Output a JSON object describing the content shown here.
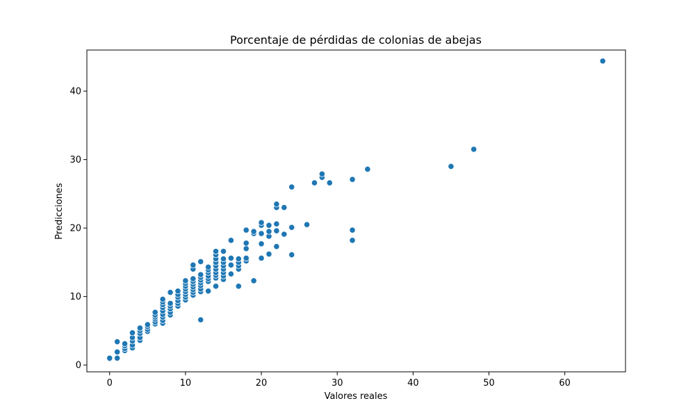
{
  "chart_data": {
    "type": "scatter",
    "title": "Porcentaje de pérdidas de colonias de abejas",
    "xlabel": "Valores reales",
    "ylabel": "Predicciones",
    "xlim": [
      -3,
      68
    ],
    "ylim": [
      -1,
      46
    ],
    "xticks": [
      0,
      10,
      20,
      30,
      40,
      50,
      60
    ],
    "yticks": [
      0,
      10,
      20,
      30,
      40
    ],
    "grid": false,
    "legend": "none",
    "marker_color": "#1f77b4",
    "points": [
      [
        0,
        0.9
      ],
      [
        0,
        1.0
      ],
      [
        1,
        1.0
      ],
      [
        1,
        1.9
      ],
      [
        1,
        3.4
      ],
      [
        2,
        2.1
      ],
      [
        2,
        2.4
      ],
      [
        2,
        2.8
      ],
      [
        2,
        3.1
      ],
      [
        3,
        2.5
      ],
      [
        3,
        2.9
      ],
      [
        3,
        3.5
      ],
      [
        3,
        4.0
      ],
      [
        3,
        4.7
      ],
      [
        4,
        3.6
      ],
      [
        4,
        4.0
      ],
      [
        4,
        4.6
      ],
      [
        4,
        5.0
      ],
      [
        4,
        5.4
      ],
      [
        5,
        4.9
      ],
      [
        5,
        5.2
      ],
      [
        5,
        5.6
      ],
      [
        5,
        5.9
      ],
      [
        6,
        6.0
      ],
      [
        6,
        6.3
      ],
      [
        6,
        6.7
      ],
      [
        6,
        7.0
      ],
      [
        6,
        7.3
      ],
      [
        6,
        7.7
      ],
      [
        7,
        6.1
      ],
      [
        7,
        6.5
      ],
      [
        7,
        7.0
      ],
      [
        7,
        7.4
      ],
      [
        7,
        7.9
      ],
      [
        7,
        8.4
      ],
      [
        7,
        8.8
      ],
      [
        7,
        9.2
      ],
      [
        7,
        9.6
      ],
      [
        8,
        7.3
      ],
      [
        8,
        7.7
      ],
      [
        8,
        8.2
      ],
      [
        8,
        8.6
      ],
      [
        8,
        9.0
      ],
      [
        8,
        10.6
      ],
      [
        9,
        8.6
      ],
      [
        9,
        9.0
      ],
      [
        9,
        9.4
      ],
      [
        9,
        9.9
      ],
      [
        9,
        10.3
      ],
      [
        9,
        10.8
      ],
      [
        10,
        9.5
      ],
      [
        10,
        9.9
      ],
      [
        10,
        10.3
      ],
      [
        10,
        10.7
      ],
      [
        10,
        11.1
      ],
      [
        10,
        11.5
      ],
      [
        10,
        11.9
      ],
      [
        10,
        12.3
      ],
      [
        11,
        10.2
      ],
      [
        11,
        10.6
      ],
      [
        11,
        11.0
      ],
      [
        11,
        11.4
      ],
      [
        11,
        11.8
      ],
      [
        11,
        12.2
      ],
      [
        11,
        12.6
      ],
      [
        11,
        14.0
      ],
      [
        11,
        14.6
      ],
      [
        12,
        6.6
      ],
      [
        12,
        10.7
      ],
      [
        12,
        11.1
      ],
      [
        12,
        11.6
      ],
      [
        12,
        12.0
      ],
      [
        12,
        12.4
      ],
      [
        12,
        12.8
      ],
      [
        12,
        13.2
      ],
      [
        12,
        15.1
      ],
      [
        13,
        10.8
      ],
      [
        13,
        12.2
      ],
      [
        13,
        12.6
      ],
      [
        13,
        13.0
      ],
      [
        13,
        13.5
      ],
      [
        13,
        13.9
      ],
      [
        13,
        14.3
      ],
      [
        14,
        11.5
      ],
      [
        14,
        12.7
      ],
      [
        14,
        13.1
      ],
      [
        14,
        13.5
      ],
      [
        14,
        14.0
      ],
      [
        14,
        14.5
      ],
      [
        14,
        15.0
      ],
      [
        14,
        15.5
      ],
      [
        14,
        16.1
      ],
      [
        14,
        16.6
      ],
      [
        15,
        12.5
      ],
      [
        15,
        13.0
      ],
      [
        15,
        13.5
      ],
      [
        15,
        14.0
      ],
      [
        15,
        14.5
      ],
      [
        15,
        15.0
      ],
      [
        15,
        15.5
      ],
      [
        15,
        16.6
      ],
      [
        16,
        13.3
      ],
      [
        16,
        14.6
      ],
      [
        16,
        15.6
      ],
      [
        16,
        18.2
      ],
      [
        17,
        11.5
      ],
      [
        17,
        14.0
      ],
      [
        17,
        14.5
      ],
      [
        17,
        15.0
      ],
      [
        17,
        15.5
      ],
      [
        18,
        15.2
      ],
      [
        18,
        15.6
      ],
      [
        18,
        17.0
      ],
      [
        18,
        17.8
      ],
      [
        18,
        19.7
      ],
      [
        19,
        12.3
      ],
      [
        19,
        19.2
      ],
      [
        19,
        19.5
      ],
      [
        20,
        15.6
      ],
      [
        20,
        17.7
      ],
      [
        20,
        19.2
      ],
      [
        20,
        20.4
      ],
      [
        20,
        20.8
      ],
      [
        21,
        16.2
      ],
      [
        21,
        18.8
      ],
      [
        21,
        19.5
      ],
      [
        21,
        20.4
      ],
      [
        22,
        17.3
      ],
      [
        22,
        19.6
      ],
      [
        22,
        20.6
      ],
      [
        22,
        23.0
      ],
      [
        22,
        23.5
      ],
      [
        23,
        19.1
      ],
      [
        23,
        23.0
      ],
      [
        24,
        16.1
      ],
      [
        24,
        20.1
      ],
      [
        24,
        26.0
      ],
      [
        26,
        20.5
      ],
      [
        27,
        26.6
      ],
      [
        28,
        27.4
      ],
      [
        28,
        27.9
      ],
      [
        29,
        26.6
      ],
      [
        32,
        18.2
      ],
      [
        32,
        19.7
      ],
      [
        32,
        27.1
      ],
      [
        34,
        28.6
      ],
      [
        45,
        29.0
      ],
      [
        48,
        31.5
      ],
      [
        65,
        44.4
      ]
    ]
  }
}
